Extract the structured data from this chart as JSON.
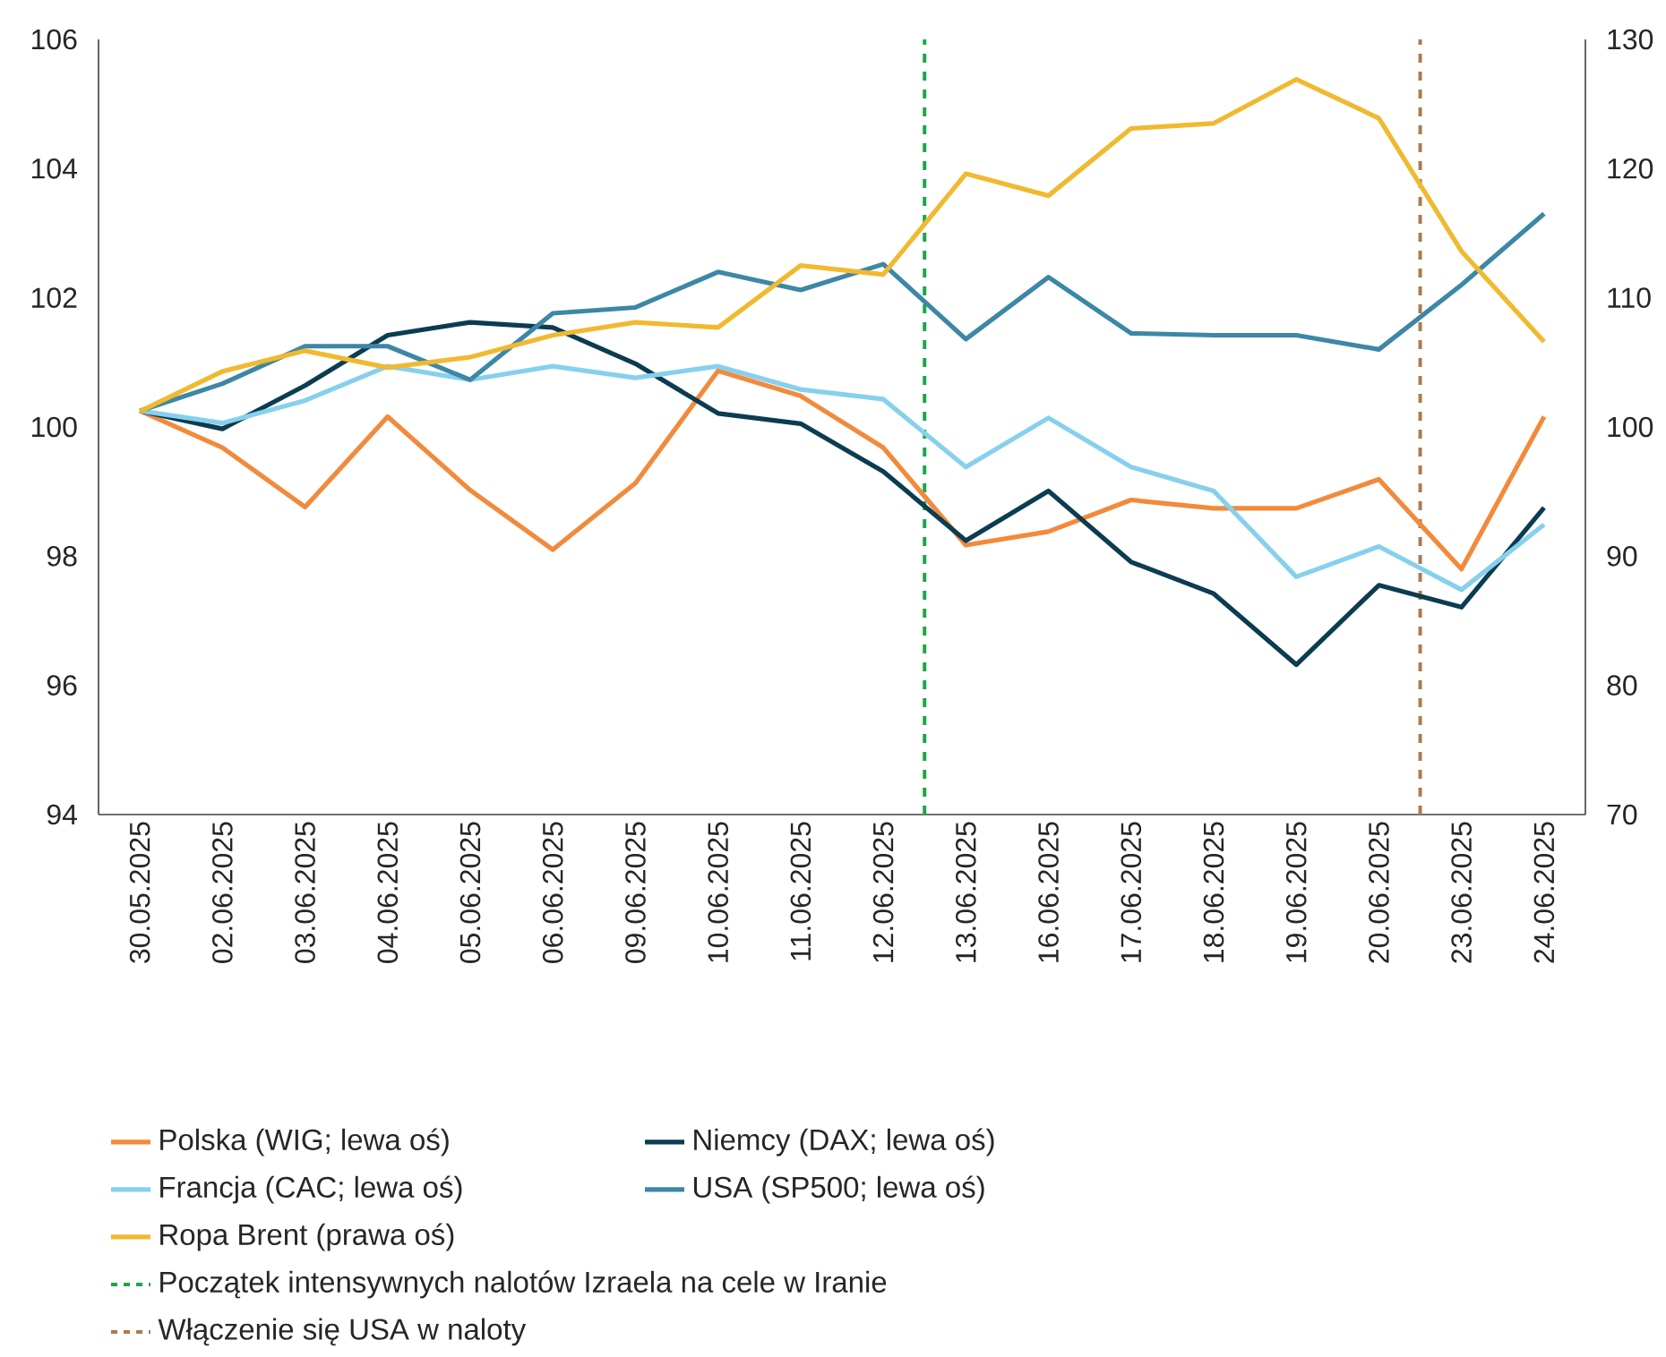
{
  "chart_data": {
    "type": "line",
    "categories": [
      "30.05.2025",
      "02.06.2025",
      "03.06.2025",
      "04.06.2025",
      "05.06.2025",
      "06.06.2025",
      "09.06.2025",
      "10.06.2025",
      "11.06.2025",
      "12.06.2025",
      "13.06.2025",
      "16.06.2025",
      "17.06.2025",
      "18.06.2025",
      "19.06.2025",
      "20.06.2025",
      "23.06.2025",
      "24.06.2025"
    ],
    "series": [
      {
        "name": "Polska (WIG; lewa oś)",
        "color": "#f28a3c",
        "values": [
          100.25,
          99.68,
          98.76,
          100.16,
          99.02,
          98.1,
          99.13,
          100.87,
          100.48,
          99.68,
          98.17,
          98.38,
          98.87,
          98.74,
          98.74,
          99.19,
          97.8,
          100.16
        ]
      },
      {
        "name": "Niemcy (DAX; lewa oś)",
        "color": "#0b3c52",
        "values": [
          100.25,
          99.97,
          100.64,
          101.42,
          101.62,
          101.54,
          100.98,
          100.21,
          100.05,
          99.31,
          98.24,
          99.01,
          97.91,
          97.42,
          96.32,
          97.55,
          97.21,
          98.75
        ]
      },
      {
        "name": "Francja (CAC; lewa oś)",
        "color": "#86d0ee",
        "values": [
          100.25,
          100.06,
          100.41,
          100.94,
          100.73,
          100.94,
          100.76,
          100.94,
          100.58,
          100.43,
          99.38,
          100.14,
          99.38,
          99.01,
          97.68,
          98.15,
          97.48,
          98.49
        ]
      },
      {
        "name": "USA (SP500; lewa oś)",
        "color": "#3d87a6",
        "values": [
          100.25,
          100.67,
          101.25,
          101.25,
          100.73,
          101.76,
          101.85,
          102.4,
          102.12,
          102.52,
          101.36,
          102.32,
          101.45,
          101.42,
          101.42,
          101.2,
          102.2,
          103.3
        ]
      },
      {
        "name": "Ropa Brent (prawa oś)",
        "color": "#f0b92f",
        "axis": "y2",
        "values": [
          101.2,
          104.3,
          105.9,
          104.6,
          105.4,
          107.1,
          108.1,
          107.7,
          112.5,
          111.8,
          119.6,
          117.9,
          123.1,
          123.5,
          126.9,
          123.9,
          113.6,
          106.6
        ]
      }
    ],
    "ylim": [
      94,
      106
    ],
    "yticks": [
      94,
      96,
      98,
      100,
      102,
      104,
      106
    ],
    "y2lim": [
      70,
      130
    ],
    "y2ticks": [
      70,
      80,
      90,
      100,
      110,
      120,
      130
    ],
    "ref_lines": [
      {
        "axis": "x",
        "value": "13.06.2025",
        "label": "Początek intensywnych nalotów Izraela na cele w Iranie",
        "color": "#1aa84a",
        "line_style": "dashed"
      },
      {
        "axis": "x",
        "value": "23.06.2025",
        "label": "Włączenie się USA w naloty",
        "color": "#a97c50",
        "line_style": "dashed"
      }
    ],
    "grid": false,
    "legend": "bottom"
  }
}
